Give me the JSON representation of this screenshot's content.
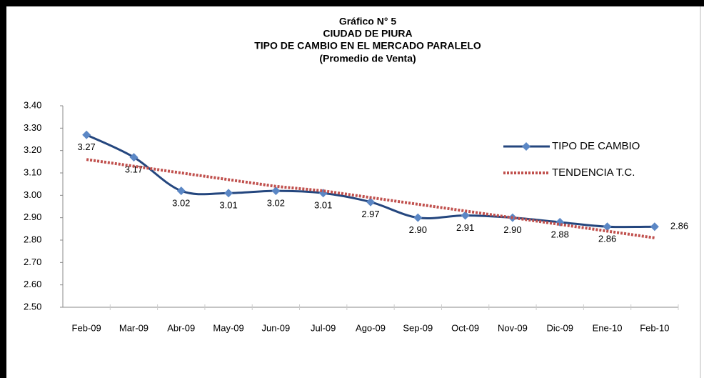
{
  "chart_data": {
    "type": "line",
    "title": [
      "Gráfico N° 5",
      "CIUDAD DE PIURA",
      "TIPO DE CAMBIO EN EL MERCADO PARALELO",
      "(Promedio de Venta)"
    ],
    "categories": [
      "Feb-09",
      "Mar-09",
      "Abr-09",
      "May-09",
      "Jun-09",
      "Jul-09",
      "Ago-09",
      "Sep-09",
      "Oct-09",
      "Nov-09",
      "Dic-09",
      "Ene-10",
      "Feb-10"
    ],
    "series": [
      {
        "name": "TIPO DE CAMBIO",
        "color": "#24467e",
        "marker_color": "#5b87c5",
        "values": [
          3.27,
          3.17,
          3.02,
          3.01,
          3.02,
          3.01,
          2.97,
          2.9,
          2.91,
          2.9,
          2.88,
          2.86,
          2.86
        ],
        "value_labels": [
          "3.27",
          "3.17",
          "3.02",
          "3.01",
          "3.02",
          "3.01",
          "2.97",
          "2.90",
          "2.91",
          "2.90",
          "2.88",
          "2.86",
          "2.86"
        ]
      },
      {
        "name": "TENDENCIA T.C.",
        "color": "#c0504d",
        "dashed": true,
        "values": [
          3.16,
          3.13,
          3.1,
          3.07,
          3.04,
          3.02,
          2.99,
          2.96,
          2.93,
          2.9,
          2.87,
          2.84,
          2.81
        ]
      }
    ],
    "ylim": [
      2.5,
      3.4
    ],
    "yticks": [
      {
        "value": 2.5,
        "label": "2.50"
      },
      {
        "value": 2.6,
        "label": "2.60"
      },
      {
        "value": 2.7,
        "label": "2.70"
      },
      {
        "value": 2.8,
        "label": "2.80"
      },
      {
        "value": 2.9,
        "label": "2.90"
      },
      {
        "value": 3.0,
        "label": "3.00"
      },
      {
        "value": 3.1,
        "label": "3.10"
      },
      {
        "value": 3.2,
        "label": "3.20"
      },
      {
        "value": 3.3,
        "label": "3.30"
      },
      {
        "value": 3.4,
        "label": "3.40"
      }
    ],
    "legend": "right"
  }
}
